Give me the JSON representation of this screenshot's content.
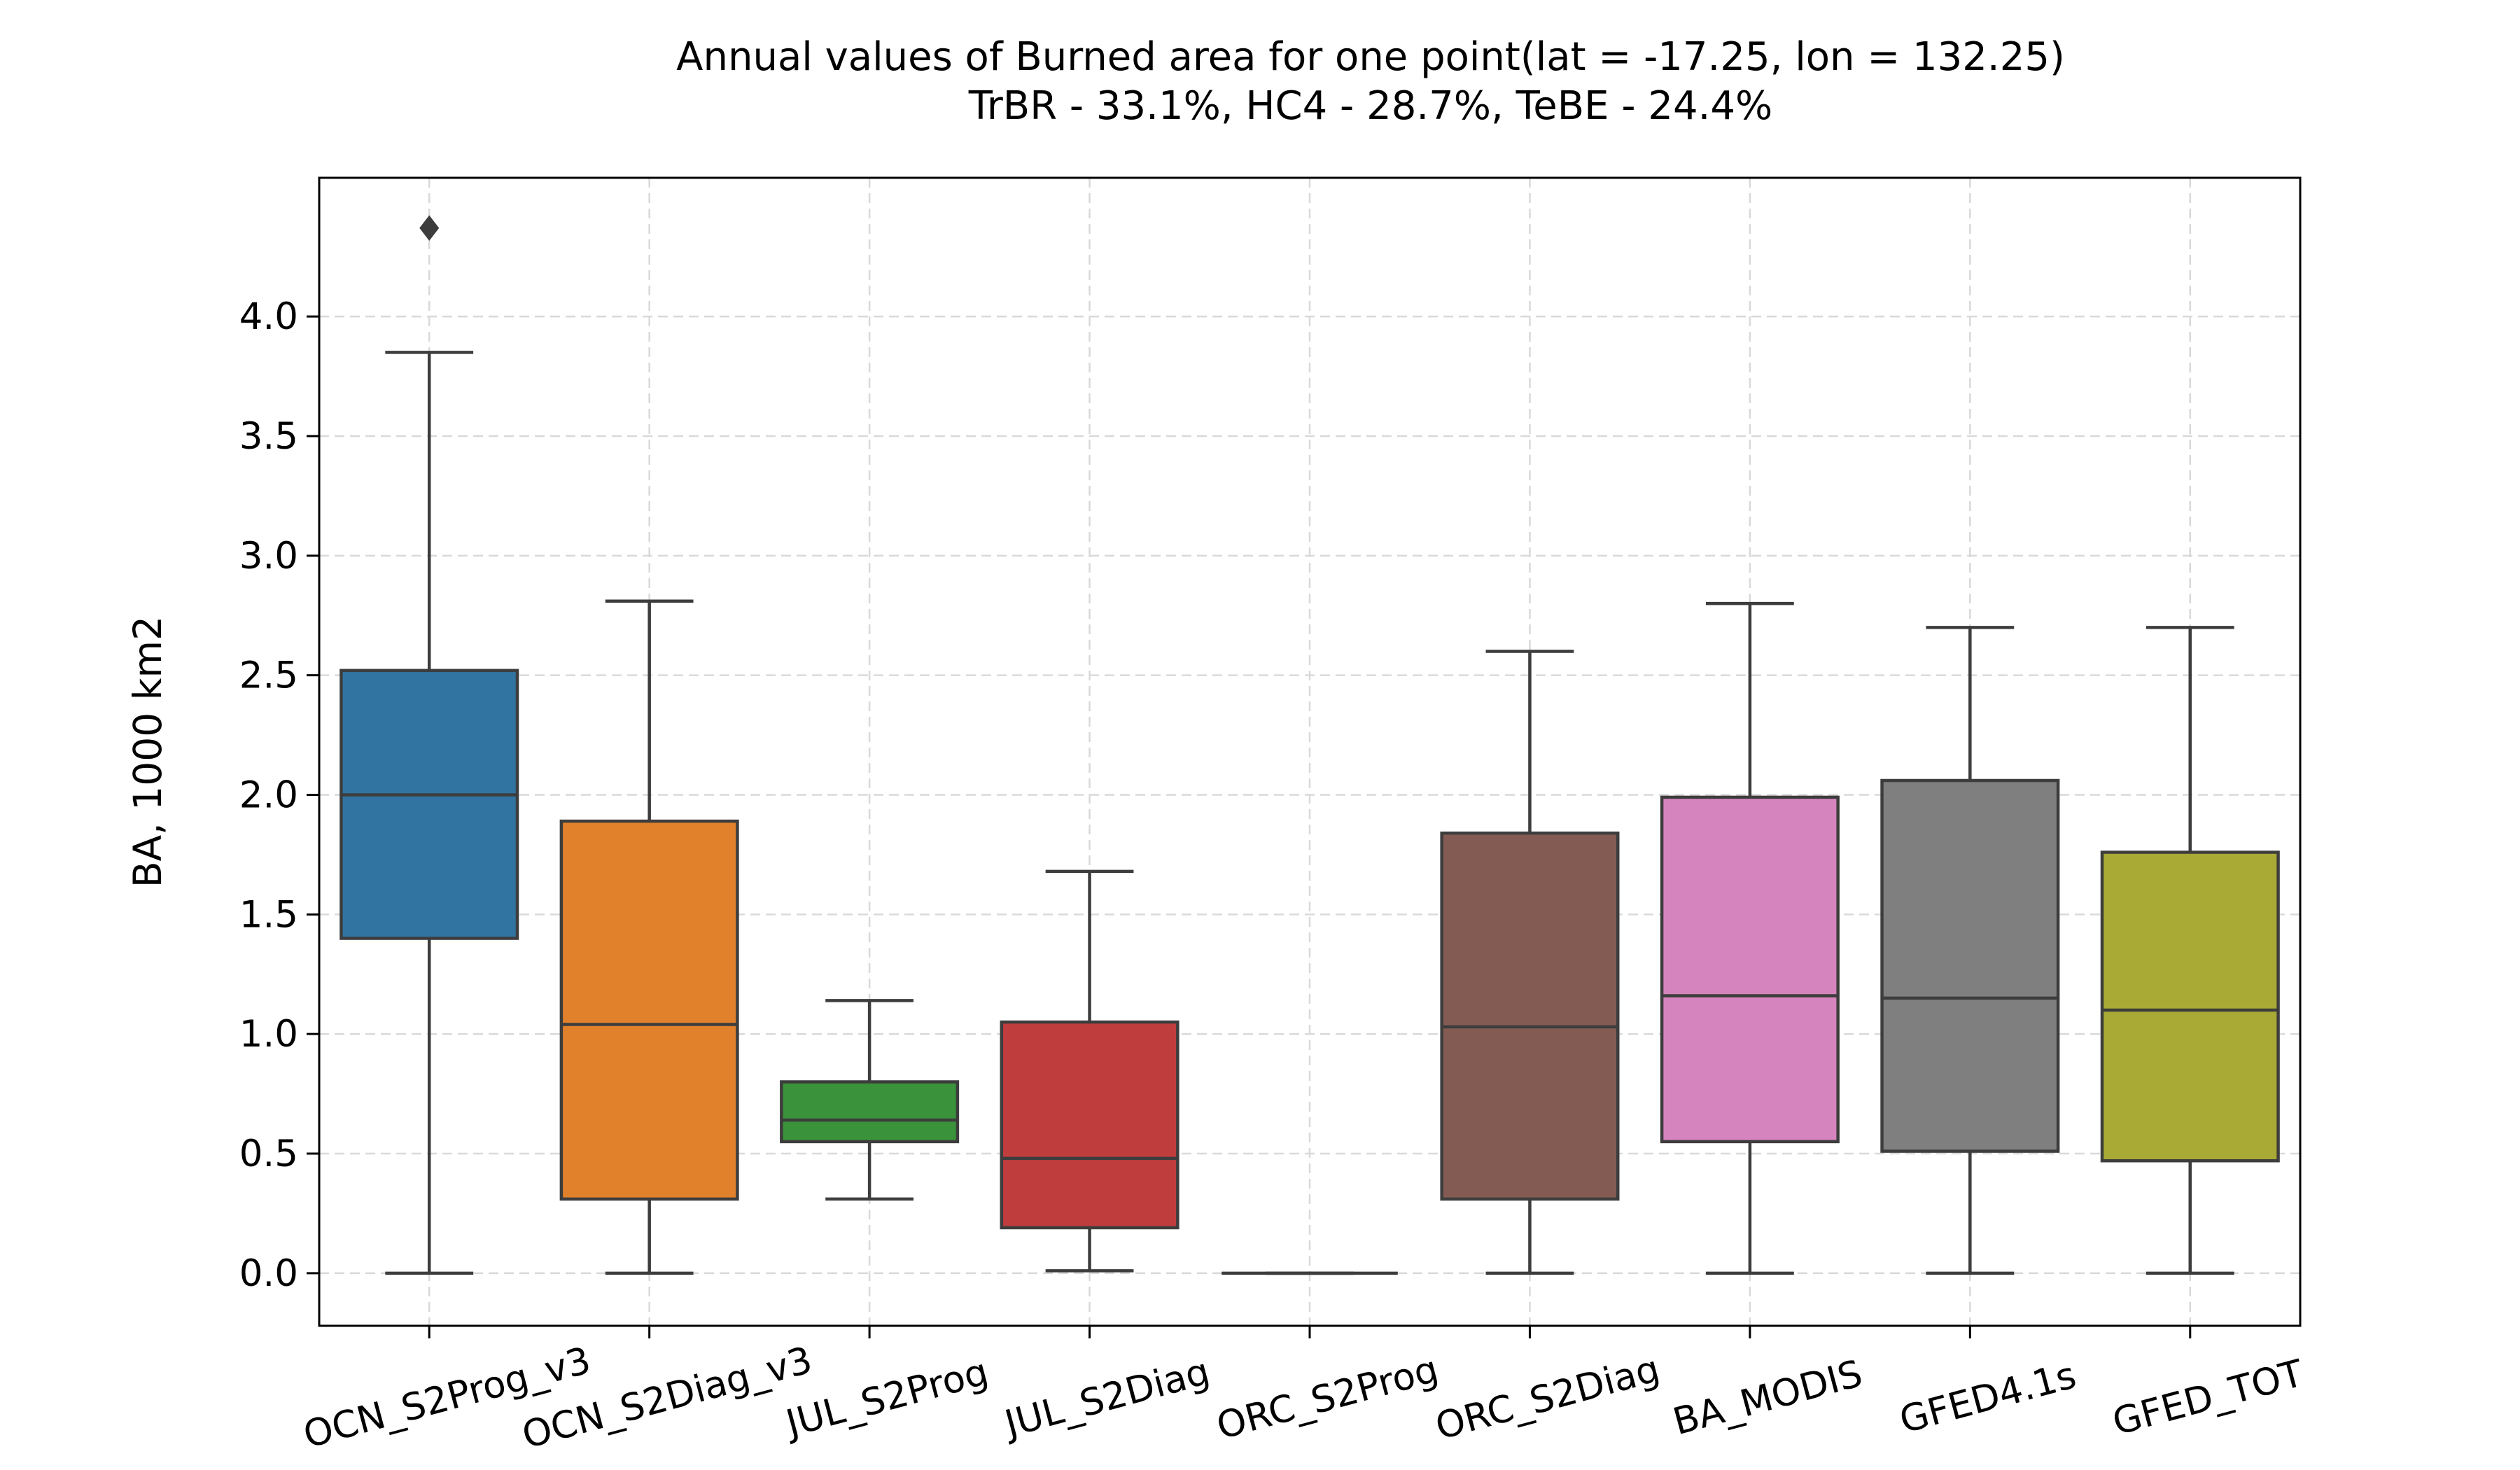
{
  "chart_data": {
    "type": "box",
    "title": "Annual values of Burned area for one point(lat = -17.25, lon = 132.25)",
    "subtitle": "TrBR - 33.1%, HC4  - 28.7%, TeBE - 24.4%",
    "xlabel": "",
    "ylabel": "BA, 1000 km2",
    "ylim": [
      -0.22,
      4.58
    ],
    "yticks": [
      "0.0",
      "0.5",
      "1.0",
      "1.5",
      "2.0",
      "2.5",
      "3.0",
      "3.5",
      "4.0"
    ],
    "grid": true,
    "grid_style": "dashed",
    "categories": [
      "OCN_S2Prog_v3",
      "OCN_S2Diag_v3",
      "JUL_S2Prog",
      "JUL_S2Diag",
      "ORC_S2Prog",
      "ORC_S2Diag",
      "BA_MODIS",
      "GFED4.1s",
      "GFED_TOT"
    ],
    "series": [
      {
        "category": "OCN_S2Prog_v3",
        "whisker_low": 0.0,
        "q1": 1.4,
        "median": 2.0,
        "q3": 2.52,
        "whisker_high": 3.85,
        "outliers": [
          4.37
        ],
        "color": "#3274a1"
      },
      {
        "category": "OCN_S2Diag_v3",
        "whisker_low": 0.0,
        "q1": 0.31,
        "median": 1.04,
        "q3": 1.89,
        "whisker_high": 2.81,
        "outliers": [],
        "color": "#e1812c"
      },
      {
        "category": "JUL_S2Prog",
        "whisker_low": 0.31,
        "q1": 0.55,
        "median": 0.64,
        "q3": 0.8,
        "whisker_high": 1.14,
        "outliers": [],
        "color": "#3a923a"
      },
      {
        "category": "JUL_S2Diag",
        "whisker_low": 0.01,
        "q1": 0.19,
        "median": 0.48,
        "q3": 1.05,
        "whisker_high": 1.68,
        "outliers": [],
        "color": "#c03d3e"
      },
      {
        "category": "ORC_S2Prog",
        "whisker_low": 0.0,
        "q1": 0.0,
        "median": 0.0,
        "q3": 0.0,
        "whisker_high": 0.0,
        "outliers": [],
        "color": "#9372b2"
      },
      {
        "category": "ORC_S2Diag",
        "whisker_low": 0.0,
        "q1": 0.31,
        "median": 1.03,
        "q3": 1.84,
        "whisker_high": 2.6,
        "outliers": [],
        "color": "#845b53"
      },
      {
        "category": "BA_MODIS",
        "whisker_low": 0.0,
        "q1": 0.55,
        "median": 1.16,
        "q3": 1.99,
        "whisker_high": 2.8,
        "outliers": [],
        "color": "#d684bd"
      },
      {
        "category": "GFED4.1s",
        "whisker_low": 0.0,
        "q1": 0.51,
        "median": 1.15,
        "q3": 2.06,
        "whisker_high": 2.7,
        "outliers": [],
        "color": "#7f7f7f"
      },
      {
        "category": "GFED_TOT",
        "whisker_low": 0.0,
        "q1": 0.47,
        "median": 1.1,
        "q3": 1.76,
        "whisker_high": 2.7,
        "outliers": [],
        "color": "#a9aa35"
      }
    ]
  },
  "colors": {
    "box_edge": "#3d3d3d",
    "grid": "#d9d9d9",
    "axes": "#000000"
  }
}
